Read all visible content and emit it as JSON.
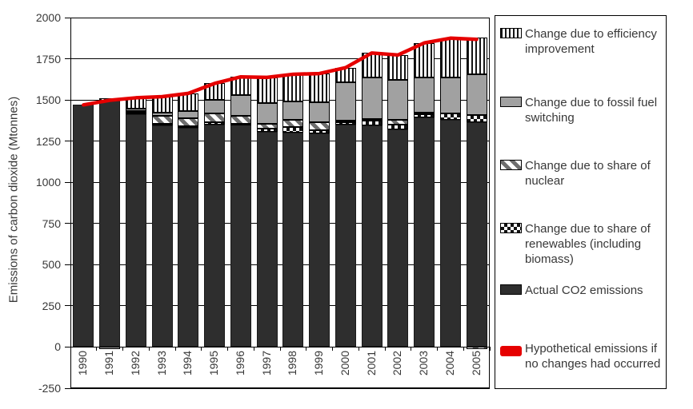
{
  "chart_data": {
    "type": "bar",
    "stacked": true,
    "grid": true,
    "legend_position": "right",
    "title": "",
    "xlabel": "",
    "ylabel": "Emissions of carbon dioxide (Mtonnes)",
    "ylim": [
      -250,
      2000
    ],
    "yticks": [
      2000,
      1750,
      1500,
      1250,
      1000,
      750,
      500,
      250,
      0,
      -250
    ],
    "categories": [
      "1990",
      "1991",
      "1992",
      "1993",
      "1994",
      "1995",
      "1996",
      "1997",
      "1998",
      "1999",
      "2000",
      "2001",
      "2002",
      "2003",
      "2004",
      "2005"
    ],
    "series": [
      {
        "name": "Actual CO2 emissions",
        "pattern": "solid-dark",
        "values": [
          1470,
          1497,
          1415,
          1345,
          1330,
          1352,
          1352,
          1305,
          1303,
          1295,
          1350,
          1345,
          1320,
          1395,
          1380,
          1365
        ]
      },
      {
        "name": "Change due to share of renewables (including biomass)",
        "pattern": "checker",
        "values": [
          0,
          0,
          8,
          10,
          12,
          14,
          5,
          20,
          33,
          20,
          16,
          30,
          28,
          18,
          40,
          42
        ]
      },
      {
        "name": "Change due to share of nuclear",
        "pattern": "diagonal",
        "values": [
          0,
          0,
          12,
          48,
          48,
          52,
          45,
          32,
          45,
          48,
          10,
          10,
          30,
          8,
          0,
          -12
        ]
      },
      {
        "name": "Change due to fossil fuel switching",
        "pattern": "solid-gray",
        "values": [
          0,
          -12,
          10,
          22,
          42,
          82,
          130,
          125,
          110,
          122,
          230,
          250,
          245,
          215,
          215,
          248
        ]
      },
      {
        "name": "Change due to efficiency improvement",
        "pattern": "vstripes",
        "values": [
          0,
          13,
          68,
          95,
          108,
          100,
          108,
          155,
          165,
          175,
          90,
          150,
          150,
          210,
          240,
          225
        ]
      }
    ],
    "line_series": {
      "name": "Hypothetical emissions if no changes had occurred",
      "color": "#e60000",
      "values": [
        1470,
        1498,
        1513,
        1520,
        1540,
        1600,
        1640,
        1637,
        1656,
        1660,
        1696,
        1785,
        1773,
        1846,
        1875,
        1868
      ]
    }
  },
  "legend": {
    "items": [
      {
        "label": "Change due to efficiency improvement",
        "pattern": "vstripes"
      },
      {
        "label": "Change due to fossil fuel switching",
        "pattern": "solid-gray"
      },
      {
        "label": "Change due to share of nuclear",
        "pattern": "diagonal"
      },
      {
        "label": "Change due to share of renewables (including biomass)",
        "pattern": "checker"
      },
      {
        "label": "Actual CO2 emissions",
        "pattern": "solid-dark"
      },
      {
        "label": "Hypothetical emissions if no changes had occurred",
        "pattern": "red-line"
      }
    ]
  },
  "colors": {
    "line_red": "#e60000",
    "bar_dark": "#2e2e2e",
    "bar_gray": "#a1a1a1",
    "axis_text": "#383838"
  }
}
